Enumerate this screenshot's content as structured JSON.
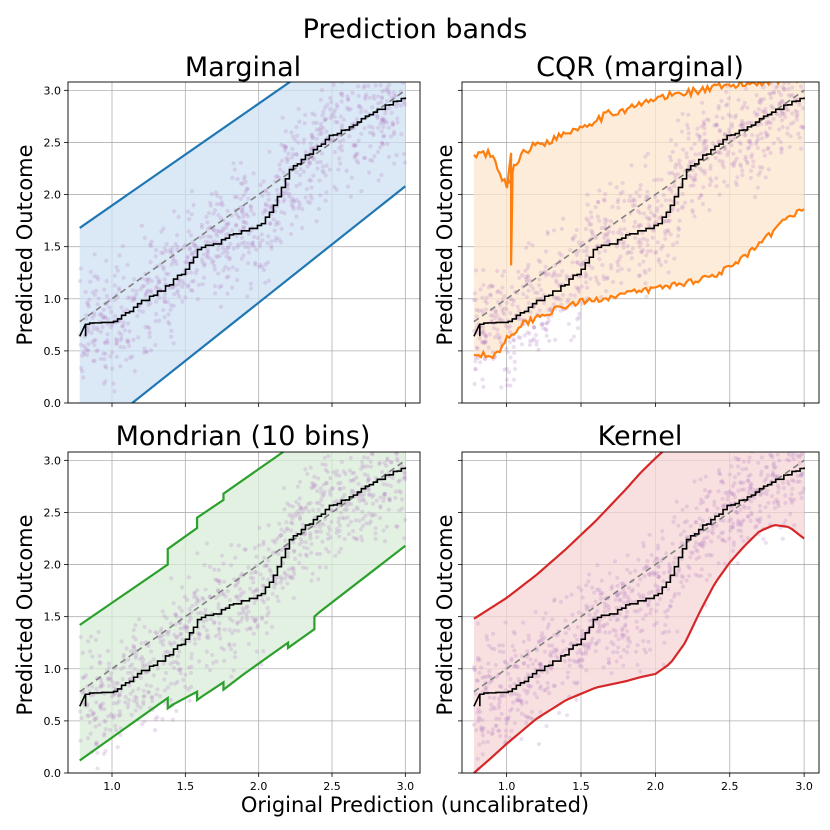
{
  "figure": {
    "title": "Prediction bands",
    "xlabel": "Original Prediction (uncalibrated)"
  },
  "chart_data": [
    {
      "type": "line",
      "title": "Marginal",
      "xlabel": "Original Prediction (uncalibrated)",
      "ylabel": "Predicted Outcome",
      "xlim": [
        0.7,
        3.1
      ],
      "ylim": [
        0.0,
        3.08
      ],
      "xticks": [
        "1.0",
        "1.5",
        "2.0",
        "2.5",
        "3.0"
      ],
      "yticks": [
        "0.0",
        "0.5",
        "1.0",
        "1.5",
        "2.0",
        "2.5",
        "3.0"
      ],
      "show_xticklabels": false,
      "show_yticklabels": true,
      "grid": true,
      "band_fill": "#cfe0f3",
      "band_color": "#1f77b4",
      "band_kind": "marginal",
      "upper": {
        "x": [
          0.78,
          3.0
        ],
        "y": [
          1.68,
          3.85
        ]
      },
      "lower": {
        "x": [
          0.78,
          3.0
        ],
        "y": [
          -0.4,
          2.08
        ]
      },
      "identity": {
        "x": [
          0.78,
          3.0
        ],
        "y": [
          0.78,
          3.0
        ]
      },
      "calibrated": {
        "x": [
          0.78,
          0.82,
          0.9,
          1.0,
          1.1,
          1.2,
          1.3,
          1.4,
          1.5,
          1.6,
          1.7,
          1.8,
          1.9,
          2.0,
          2.1,
          2.2,
          2.3,
          2.4,
          2.5,
          2.6,
          2.7,
          2.8,
          2.9,
          3.0
        ],
        "y": [
          0.64,
          0.76,
          0.76,
          0.76,
          0.87,
          0.97,
          1.05,
          1.15,
          1.28,
          1.5,
          1.52,
          1.6,
          1.65,
          1.7,
          1.88,
          2.22,
          2.35,
          2.45,
          2.58,
          2.62,
          2.72,
          2.8,
          2.88,
          2.93
        ]
      }
    },
    {
      "type": "line",
      "title": "CQR (marginal)",
      "xlabel": "Original Prediction (uncalibrated)",
      "ylabel": "Predicted Outcome",
      "xlim": [
        0.7,
        3.1
      ],
      "ylim": [
        0.0,
        3.08
      ],
      "xticks": [
        "1.0",
        "1.5",
        "2.0",
        "2.5",
        "3.0"
      ],
      "yticks": [
        "0.0",
        "0.5",
        "1.0",
        "1.5",
        "2.0",
        "2.5",
        "3.0"
      ],
      "show_xticklabels": false,
      "show_yticklabels": false,
      "grid": true,
      "band_fill": "#fde6cf",
      "band_color": "#ff7f0e",
      "band_kind": "cqr",
      "upper": {
        "x": [
          0.78,
          0.85,
          0.9,
          0.95,
          1.0,
          1.05,
          1.1,
          1.2,
          1.3,
          1.4,
          1.5,
          1.6,
          1.7,
          1.8,
          1.9,
          2.0,
          2.1,
          2.2,
          2.3,
          2.4,
          2.5,
          2.6,
          2.7,
          2.8,
          2.9,
          3.0
        ],
        "y": [
          2.38,
          2.4,
          2.38,
          2.2,
          2.08,
          2.25,
          2.4,
          2.48,
          2.52,
          2.6,
          2.65,
          2.72,
          2.78,
          2.82,
          2.86,
          2.92,
          2.95,
          2.98,
          3.0,
          3.02,
          3.04,
          3.06,
          3.08,
          3.1,
          3.12,
          3.12
        ]
      },
      "lower": {
        "x": [
          0.78,
          0.85,
          0.9,
          0.95,
          1.0,
          1.1,
          1.2,
          1.3,
          1.4,
          1.5,
          1.6,
          1.7,
          1.8,
          1.9,
          2.0,
          2.1,
          2.2,
          2.3,
          2.4,
          2.5,
          2.6,
          2.7,
          2.8,
          2.9,
          3.0
        ],
        "y": [
          0.46,
          0.46,
          0.44,
          0.5,
          0.62,
          0.75,
          0.82,
          0.88,
          0.93,
          0.97,
          0.99,
          1.02,
          1.05,
          1.07,
          1.1,
          1.13,
          1.15,
          1.19,
          1.23,
          1.3,
          1.4,
          1.52,
          1.65,
          1.8,
          1.86
        ]
      },
      "identity": {
        "x": [
          0.78,
          3.0
        ],
        "y": [
          0.78,
          3.0
        ]
      },
      "calibrated": {
        "x": [
          0.78,
          0.82,
          0.9,
          1.0,
          1.1,
          1.2,
          1.3,
          1.4,
          1.5,
          1.6,
          1.7,
          1.8,
          1.9,
          2.0,
          2.1,
          2.2,
          2.3,
          2.4,
          2.5,
          2.6,
          2.7,
          2.8,
          2.9,
          3.0
        ],
        "y": [
          0.64,
          0.76,
          0.76,
          0.76,
          0.87,
          0.97,
          1.05,
          1.15,
          1.28,
          1.5,
          1.52,
          1.6,
          1.65,
          1.7,
          1.88,
          2.22,
          2.35,
          2.45,
          2.58,
          2.62,
          2.72,
          2.8,
          2.88,
          2.93
        ]
      }
    },
    {
      "type": "line",
      "title": "Mondrian (10 bins)",
      "xlabel": "Original Prediction (uncalibrated)",
      "ylabel": "Predicted Outcome",
      "xlim": [
        0.7,
        3.1
      ],
      "ylim": [
        0.0,
        3.08
      ],
      "xticks": [
        "1.0",
        "1.5",
        "2.0",
        "2.5",
        "3.0"
      ],
      "yticks": [
        "0.0",
        "0.5",
        "1.0",
        "1.5",
        "2.0",
        "2.5",
        "3.0"
      ],
      "show_xticklabels": true,
      "show_yticklabels": true,
      "grid": true,
      "band_fill": "#d9ecd9",
      "band_color": "#2ca02c",
      "band_kind": "mondrian",
      "upper": {
        "x": [
          0.78,
          1.38,
          1.38,
          1.58,
          1.58,
          1.76,
          1.76,
          3.0
        ],
        "y": [
          1.42,
          2.0,
          2.15,
          2.35,
          2.45,
          2.62,
          2.68,
          3.9
        ]
      },
      "lower": {
        "x": [
          0.78,
          1.38,
          1.38,
          1.42,
          1.58,
          1.58,
          1.62,
          1.76,
          1.76,
          1.9,
          2.1,
          2.2,
          2.2,
          2.3,
          2.38,
          2.38,
          2.42,
          3.0
        ],
        "y": [
          0.12,
          0.72,
          0.62,
          0.66,
          0.78,
          0.7,
          0.74,
          0.87,
          0.8,
          0.95,
          1.15,
          1.25,
          1.2,
          1.3,
          1.38,
          1.5,
          1.55,
          2.18
        ]
      },
      "identity": {
        "x": [
          0.78,
          3.0
        ],
        "y": [
          0.78,
          3.0
        ]
      },
      "calibrated": {
        "x": [
          0.78,
          0.82,
          0.9,
          1.0,
          1.1,
          1.2,
          1.3,
          1.4,
          1.5,
          1.6,
          1.7,
          1.8,
          1.9,
          2.0,
          2.1,
          2.2,
          2.3,
          2.4,
          2.5,
          2.6,
          2.7,
          2.8,
          2.9,
          3.0
        ],
        "y": [
          0.64,
          0.76,
          0.76,
          0.76,
          0.87,
          0.97,
          1.05,
          1.15,
          1.28,
          1.5,
          1.52,
          1.6,
          1.65,
          1.7,
          1.88,
          2.22,
          2.35,
          2.45,
          2.58,
          2.62,
          2.72,
          2.8,
          2.88,
          2.93
        ]
      }
    },
    {
      "type": "line",
      "title": "Kernel",
      "xlabel": "Original Prediction (uncalibrated)",
      "ylabel": "Predicted Outcome",
      "xlim": [
        0.7,
        3.1
      ],
      "ylim": [
        0.0,
        3.08
      ],
      "xticks": [
        "1.0",
        "1.5",
        "2.0",
        "2.5",
        "3.0"
      ],
      "yticks": [
        "0.0",
        "0.5",
        "1.0",
        "1.5",
        "2.0",
        "2.5",
        "3.0"
      ],
      "show_xticklabels": true,
      "show_yticklabels": false,
      "grid": true,
      "band_fill": "#f7d6d6",
      "band_color": "#d62728",
      "band_kind": "kernel",
      "upper": {
        "x": [
          0.78,
          1.0,
          1.2,
          1.4,
          1.6,
          1.8,
          1.9,
          2.0,
          2.1,
          2.2
        ],
        "y": [
          1.48,
          1.68,
          1.9,
          2.15,
          2.42,
          2.72,
          2.88,
          3.02,
          3.15,
          3.3
        ]
      },
      "lower": {
        "x": [
          0.78,
          0.9,
          1.0,
          1.2,
          1.4,
          1.6,
          1.8,
          1.9,
          2.0,
          2.1,
          2.2,
          2.3,
          2.4,
          2.5,
          2.6,
          2.7,
          2.8,
          2.9,
          3.0
        ],
        "y": [
          0.0,
          0.15,
          0.28,
          0.52,
          0.7,
          0.82,
          0.88,
          0.92,
          0.95,
          1.05,
          1.25,
          1.55,
          1.82,
          2.02,
          2.18,
          2.32,
          2.38,
          2.36,
          2.25
        ]
      },
      "identity": {
        "x": [
          0.78,
          3.0
        ],
        "y": [
          0.78,
          3.0
        ]
      },
      "calibrated": {
        "x": [
          0.78,
          0.82,
          0.9,
          1.0,
          1.1,
          1.2,
          1.3,
          1.4,
          1.5,
          1.6,
          1.7,
          1.8,
          1.9,
          2.0,
          2.1,
          2.2,
          2.3,
          2.4,
          2.5,
          2.6,
          2.7,
          2.8,
          2.9,
          3.0
        ],
        "y": [
          0.64,
          0.76,
          0.76,
          0.76,
          0.87,
          0.97,
          1.05,
          1.15,
          1.28,
          1.5,
          1.52,
          1.6,
          1.65,
          1.7,
          1.88,
          2.22,
          2.35,
          2.45,
          2.58,
          2.62,
          2.72,
          2.8,
          2.88,
          2.93
        ]
      }
    }
  ],
  "colors": {
    "scatter": "#b57fc4",
    "calibrated": "#000000",
    "identity": "#808080"
  }
}
